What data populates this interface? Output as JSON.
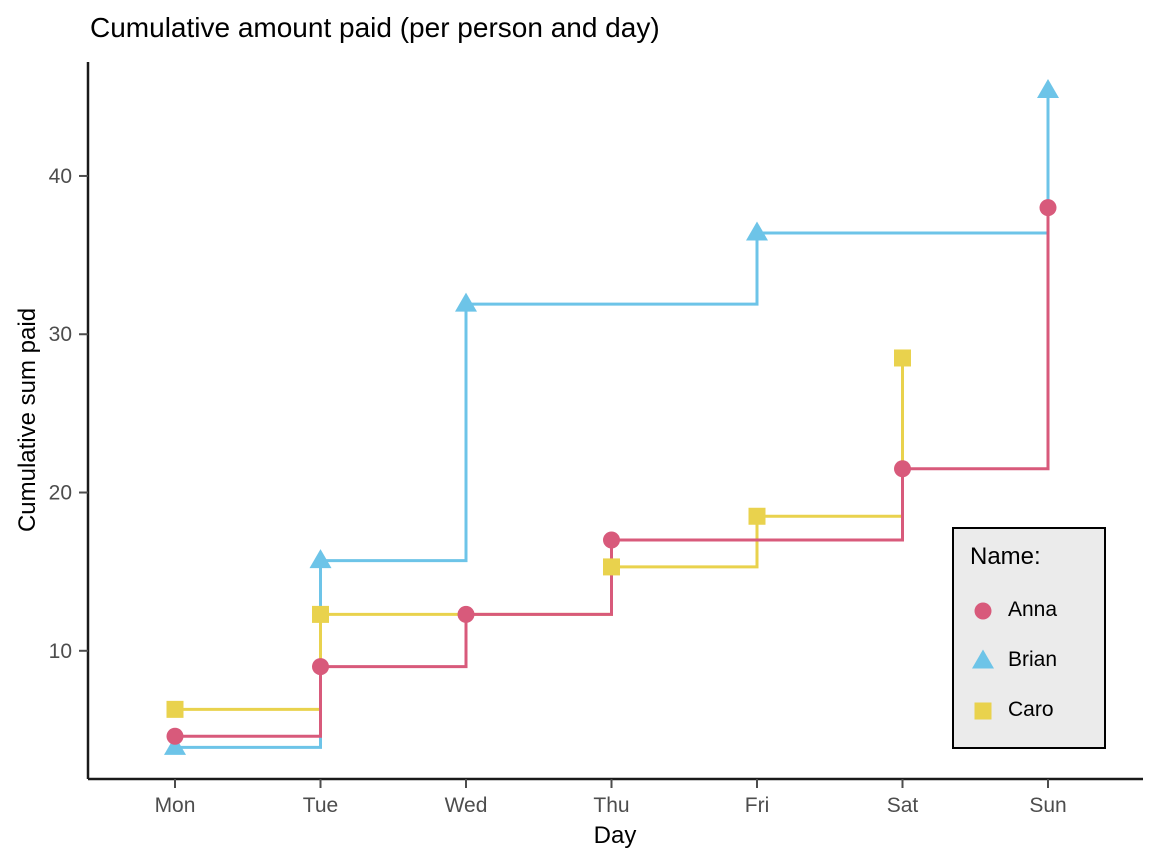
{
  "chart_data": {
    "type": "line",
    "subtype": "step-hv",
    "title": "Cumulative amount paid (per person and day)",
    "xlabel": "Day",
    "ylabel": "Cumulative sum paid",
    "categories": [
      "Mon",
      "Tue",
      "Wed",
      "Thu",
      "Fri",
      "Sat",
      "Sun"
    ],
    "yticks": [
      10,
      20,
      30,
      40
    ],
    "ylim": [
      1.9,
      47.2
    ],
    "grid": "off",
    "legend_title": "Name:",
    "legend_position": "inside-bottom-right",
    "legend_bg": "#EBEBEB",
    "axis_color": "#1a1a1a",
    "tick_label_color": "#4d4d4d",
    "series": [
      {
        "name": "Anna",
        "marker": "circle",
        "color": "#D85A7B",
        "points": [
          [
            "Mon",
            4.6
          ],
          [
            "Tue",
            9.0
          ],
          [
            "Wed",
            12.3
          ],
          [
            "Thu",
            17.0
          ],
          [
            "Sat",
            21.5
          ],
          [
            "Sun",
            38.0
          ]
        ]
      },
      {
        "name": "Brian",
        "marker": "triangle",
        "color": "#6DC4E8",
        "points": [
          [
            "Mon",
            3.9
          ],
          [
            "Tue",
            15.7
          ],
          [
            "Wed",
            31.9
          ],
          [
            "Fri",
            36.4
          ],
          [
            "Sun",
            45.4
          ]
        ]
      },
      {
        "name": "Caro",
        "marker": "square",
        "color": "#E9D24D",
        "points": [
          [
            "Mon",
            6.3
          ],
          [
            "Tue",
            12.3
          ],
          [
            "Thu",
            15.3
          ],
          [
            "Fri",
            18.5
          ],
          [
            "Sat",
            28.5
          ]
        ]
      }
    ]
  }
}
